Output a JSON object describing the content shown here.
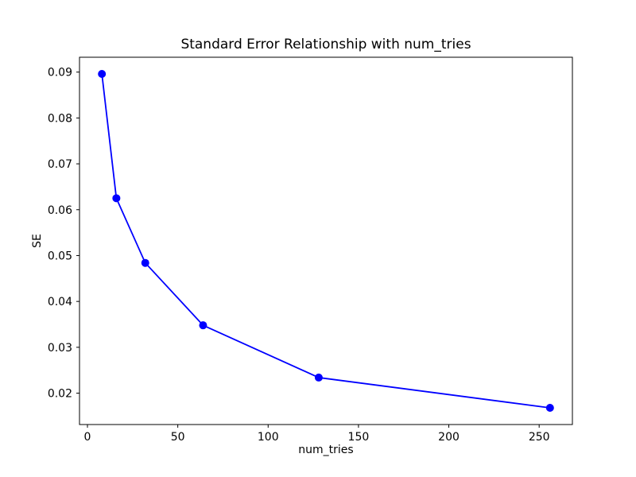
{
  "chart_data": {
    "type": "line",
    "title": "Standard Error Relationship with num_tries",
    "xlabel": "num_tries",
    "ylabel": "SE",
    "x": [
      8,
      16,
      32,
      64,
      128,
      256
    ],
    "y": [
      0.0896,
      0.0625,
      0.0484,
      0.0348,
      0.0234,
      0.0168
    ],
    "xticks": [
      0,
      50,
      100,
      150,
      200,
      250
    ],
    "yticks": [
      0.02,
      0.03,
      0.04,
      0.05,
      0.06,
      0.07,
      0.08,
      0.09
    ],
    "xlim": [
      -4.4,
      268.4
    ],
    "ylim": [
      0.01316,
      0.09324
    ],
    "grid": false,
    "legend": "none",
    "colors": {
      "line": "#0000ff",
      "marker": "#0000ff",
      "axes": "#000000",
      "text": "#000000",
      "background": "#ffffff"
    }
  }
}
